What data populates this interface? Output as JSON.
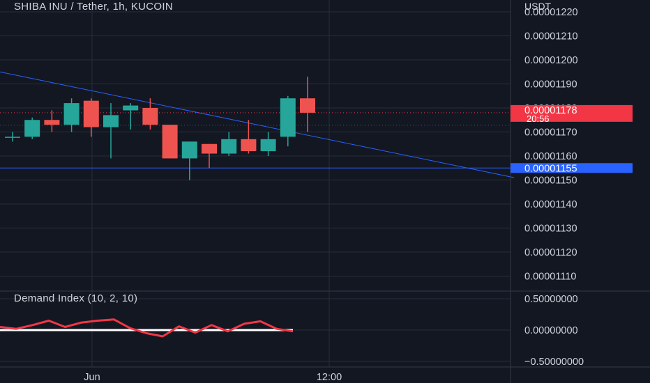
{
  "header": {
    "title": "SHIBA INU / Tether, 1h, KUCOIN",
    "currency": "USDT",
    "indicator_title": "Demand Index (10, 2, 10)"
  },
  "colors": {
    "background": "#131722",
    "up": "#26a69a",
    "down": "#ef5350",
    "grid": "#2a2e39",
    "trendline": "#2962ff",
    "price_label": "#f23645",
    "alert_label": "#2962ff",
    "indicator_line": "#f23645",
    "zero_line": "#ffffff"
  },
  "price_labels": {
    "current_price": "0.00001178",
    "countdown": "20:56",
    "alert_level": "0.00001155"
  },
  "chart_data": {
    "type": "candlestick",
    "x_ticks": [
      "Jun",
      "12:00"
    ],
    "y_ticks": [
      "0.00001220",
      "0.00001210",
      "0.00001200",
      "0.00001190",
      "0.00001180",
      "0.00001170",
      "0.00001160",
      "0.00001150",
      "0.00001140",
      "0.00001130",
      "0.00001120",
      "0.00001110"
    ],
    "ylim": [
      1.107e-05,
      1.224e-05
    ],
    "current_price": 1.178e-05,
    "horizontal_level": 1.155e-05,
    "candles": [
      {
        "o": 1.168e-05,
        "h": 1.17e-05,
        "l": 1.166e-05,
        "c": 1.168e-05
      },
      {
        "o": 1.168e-05,
        "h": 1.176e-05,
        "l": 1.167e-05,
        "c": 1.175e-05
      },
      {
        "o": 1.175e-05,
        "h": 1.179e-05,
        "l": 1.17e-05,
        "c": 1.173e-05
      },
      {
        "o": 1.173e-05,
        "h": 1.184e-05,
        "l": 1.17e-05,
        "c": 1.182e-05
      },
      {
        "o": 1.183e-05,
        "h": 1.184e-05,
        "l": 1.168e-05,
        "c": 1.172e-05
      },
      {
        "o": 1.172e-05,
        "h": 1.182e-05,
        "l": 1.159e-05,
        "c": 1.177e-05
      },
      {
        "o": 1.179e-05,
        "h": 1.182e-05,
        "l": 1.171e-05,
        "c": 1.181e-05
      },
      {
        "o": 1.18e-05,
        "h": 1.184e-05,
        "l": 1.171e-05,
        "c": 1.173e-05
      },
      {
        "o": 1.173e-05,
        "h": 1.173e-05,
        "l": 1.159e-05,
        "c": 1.159e-05
      },
      {
        "o": 1.159e-05,
        "h": 1.166e-05,
        "l": 1.15e-05,
        "c": 1.166e-05
      },
      {
        "o": 1.165e-05,
        "h": 1.165e-05,
        "l": 1.155e-05,
        "c": 1.161e-05
      },
      {
        "o": 1.161e-05,
        "h": 1.17e-05,
        "l": 1.16e-05,
        "c": 1.167e-05
      },
      {
        "o": 1.167e-05,
        "h": 1.175e-05,
        "l": 1.161e-05,
        "c": 1.162e-05
      },
      {
        "o": 1.162e-05,
        "h": 1.17e-05,
        "l": 1.16e-05,
        "c": 1.167e-05
      },
      {
        "o": 1.168e-05,
        "h": 1.185e-05,
        "l": 1.164e-05,
        "c": 1.184e-05
      },
      {
        "o": 1.184e-05,
        "h": 1.193e-05,
        "l": 1.17e-05,
        "c": 1.178e-05
      }
    ],
    "trendline": {
      "from": [
        0,
        1.195e-05
      ],
      "to": [
        25.5,
        1.151e-05
      ]
    },
    "indicator": {
      "name": "Demand Index (10, 2, 10)",
      "y_ticks": [
        "0.50000000",
        "0.00000000",
        "−0.50000000"
      ],
      "ylim": [
        -0.6,
        0.6
      ],
      "values": [
        0.05,
        0.02,
        0.08,
        0.15,
        0.05,
        0.12,
        0.15,
        0.17,
        0.03,
        -0.05,
        -0.1,
        0.06,
        -0.04,
        0.08,
        -0.02,
        0.1,
        0.14,
        0.02,
        -0.02
      ]
    }
  }
}
